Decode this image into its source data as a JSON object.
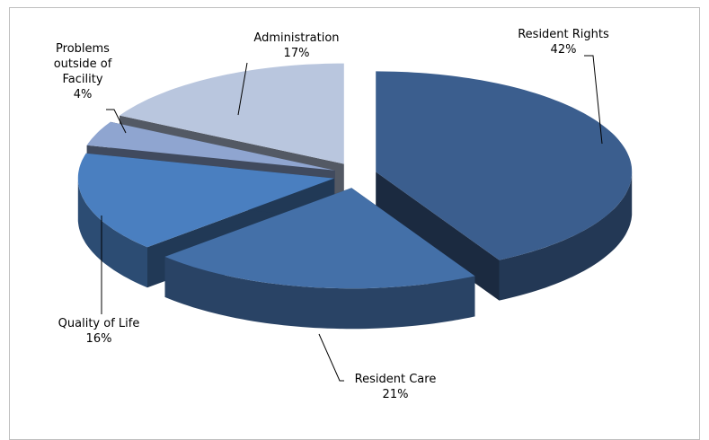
{
  "chart_data": {
    "type": "pie",
    "categories": [
      "Resident Rights",
      "Resident Care",
      "Quality of Life",
      "Problems outside of Facility",
      "Administration"
    ],
    "values": [
      42,
      21,
      16,
      4,
      17
    ],
    "value_labels": [
      "42%",
      "21%",
      "16%",
      "4%",
      "17%"
    ],
    "colors": [
      "#3b5e8e",
      "#4470a8",
      "#4a7fc0",
      "#8fa5d0",
      "#b9c6de"
    ]
  }
}
